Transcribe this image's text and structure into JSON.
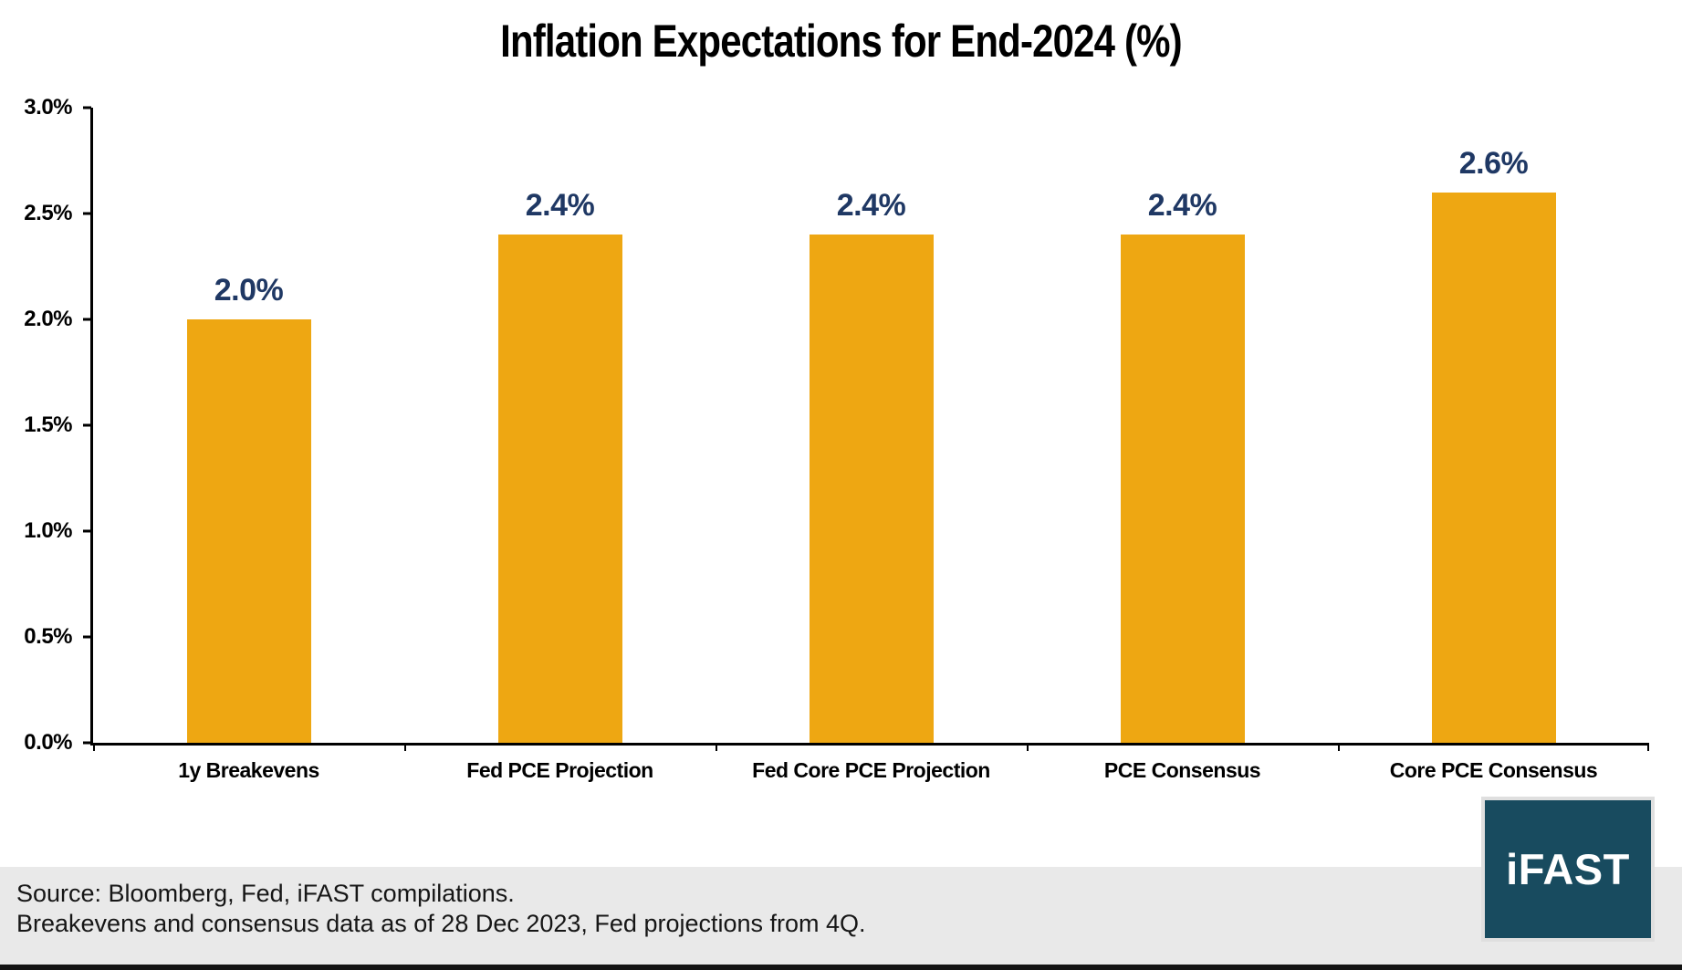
{
  "chart_data": {
    "type": "bar",
    "title": "Inflation Expectations for End-2024 (%)",
    "categories": [
      "1y Breakevens",
      "Fed PCE Projection",
      "Fed Core PCE Projection",
      "PCE Consensus",
      "Core PCE Consensus"
    ],
    "values": [
      2.0,
      2.4,
      2.4,
      2.4,
      2.6
    ],
    "data_labels": [
      "2.0%",
      "2.4%",
      "2.4%",
      "2.4%",
      "2.6%"
    ],
    "xlabel": "",
    "ylabel": "",
    "ylim": [
      0,
      3.0
    ],
    "ytick_step": 0.5,
    "ytick_labels": [
      "0.0%",
      "0.5%",
      "1.0%",
      "1.5%",
      "2.0%",
      "2.5%",
      "3.0%"
    ],
    "grid": false,
    "legend": false,
    "bar_color": "#EEA712",
    "data_label_color": "#1F3864",
    "axis_color": "#000000"
  },
  "footer": {
    "source_line1": "Source: Bloomberg, Fed, iFAST compilations.",
    "source_line2": "Breakevens and consensus data as of 28 Dec 2023, Fed projections from 4Q."
  },
  "logo": {
    "text": "iFAST",
    "background": "#184B5F",
    "text_color": "#FFFFFF"
  },
  "colors": {
    "page_background": "#FFFFFF",
    "footer_band": "#E9E9E9",
    "bottom_strip": "#131313"
  }
}
